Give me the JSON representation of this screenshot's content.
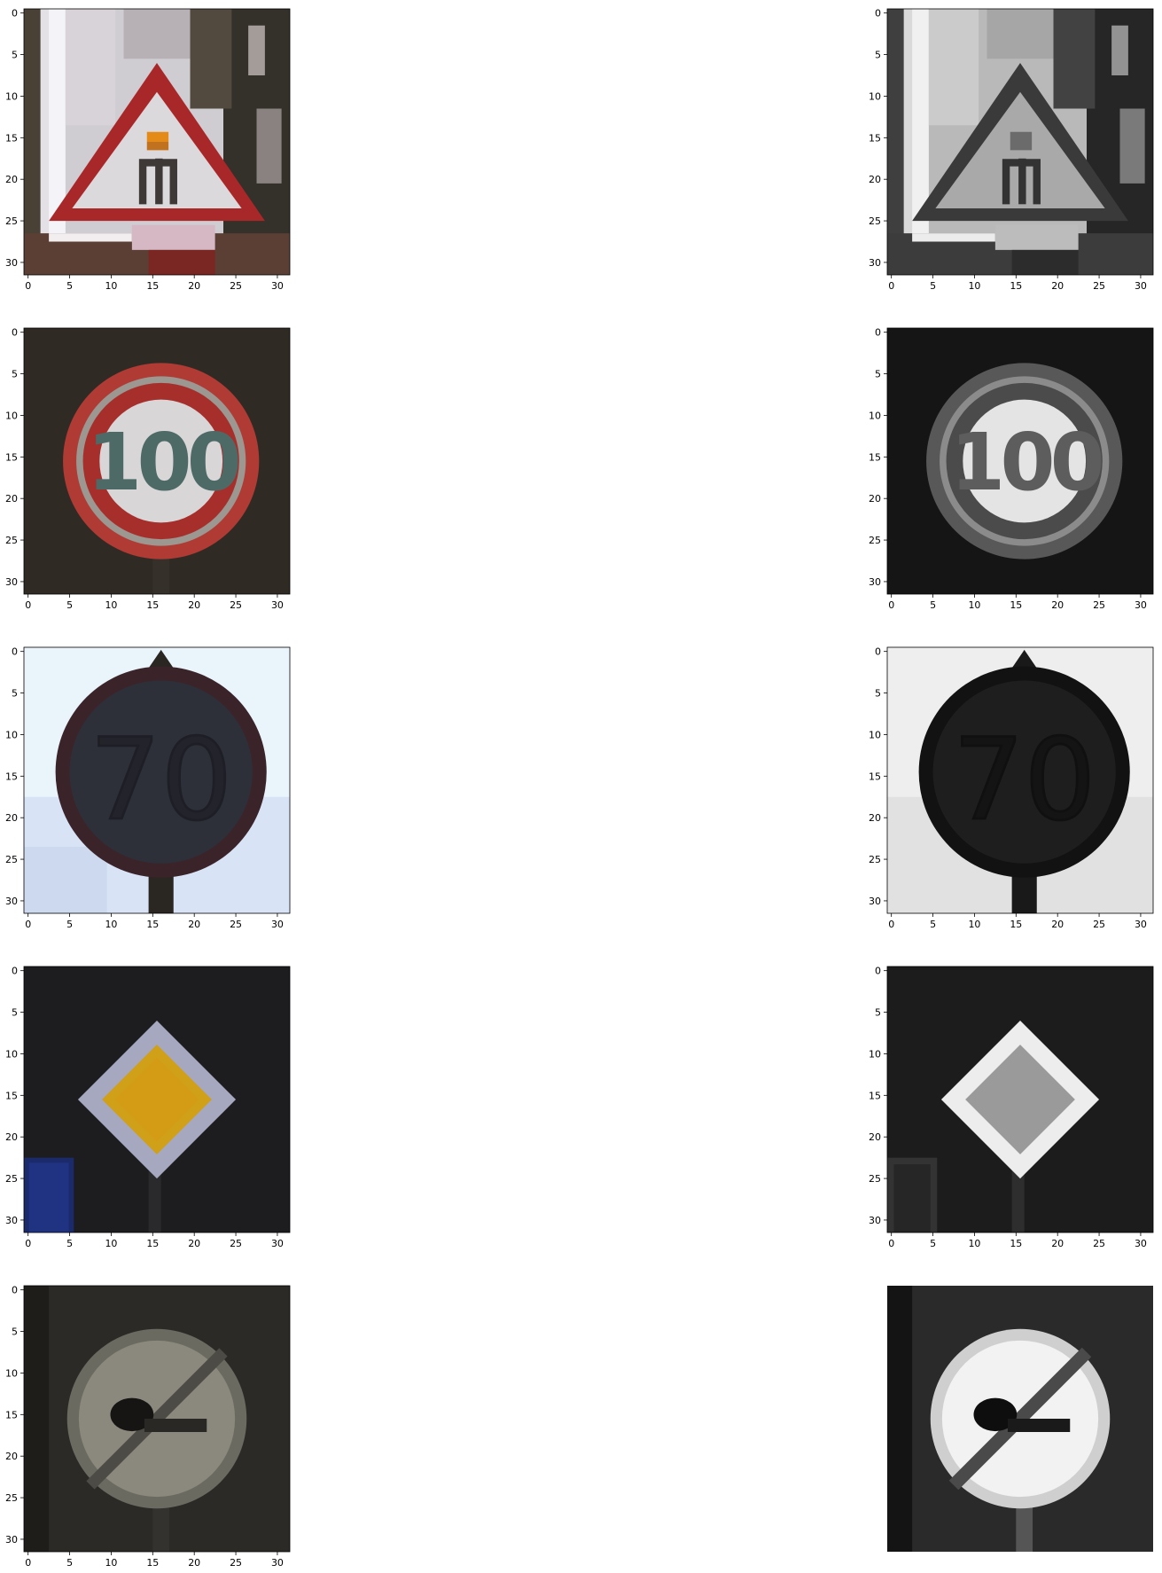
{
  "figure": {
    "rows": 5,
    "columns": [
      "color",
      "grayscale"
    ],
    "panel_axes": {
      "x_ticks": [
        0,
        5,
        10,
        15,
        20,
        25,
        30
      ],
      "y_ticks": [
        0,
        5,
        10,
        15,
        20,
        25,
        30
      ],
      "pixel_range": [
        0,
        32
      ]
    },
    "panels": [
      {
        "row": 1,
        "column": "color",
        "content": "warning-triangle-sign",
        "axes_visible": true
      },
      {
        "row": 1,
        "column": "grayscale",
        "content": "warning-triangle-sign",
        "axes_visible": true
      },
      {
        "row": 2,
        "column": "color",
        "content": "speed-limit-100-sign",
        "axes_visible": true
      },
      {
        "row": 2,
        "column": "grayscale",
        "content": "speed-limit-100-sign",
        "axes_visible": true
      },
      {
        "row": 3,
        "column": "color",
        "content": "speed-limit-70-sign",
        "axes_visible": true
      },
      {
        "row": 3,
        "column": "grayscale",
        "content": "speed-limit-70-sign",
        "axes_visible": true
      },
      {
        "row": 4,
        "column": "color",
        "content": "priority-road-sign",
        "axes_visible": true
      },
      {
        "row": 4,
        "column": "grayscale",
        "content": "priority-road-sign",
        "axes_visible": true
      },
      {
        "row": 5,
        "column": "color",
        "content": "end-of-no-passing-sign",
        "axes_visible": true
      },
      {
        "row": 5,
        "column": "grayscale",
        "content": "end-of-no-passing-sign",
        "axes_visible": false
      }
    ],
    "colors": {
      "sign_red": "#a8282a",
      "priority_yellow": "#d39b14",
      "dark_background": "#2e2b26",
      "sky": "#dde9f9"
    }
  }
}
